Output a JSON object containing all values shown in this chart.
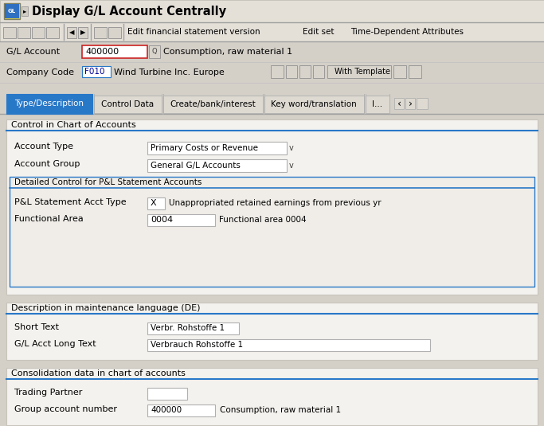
{
  "title": "Display G/L Account Centrally",
  "bg_color": "#d4d0c8",
  "white": "#ffffff",
  "light_gray": "#f0ede8",
  "tab_active_bg": "#2878c8",
  "tab_active_fg": "#ffffff",
  "tab_inactive_fg": "#000000",
  "blue_line": "#2878c8",
  "input_bg": "#ffffff",
  "input_red_border": "#cc2222",
  "input_blue_border": "#2878c8",
  "gray_border": "#b0b0b0",
  "menu_items": [
    "Edit financial statement version",
    "Edit set",
    "Time-Dependent Attributes"
  ],
  "gl_account_val": "400000",
  "gl_account_desc": "Consumption, raw material 1",
  "company_code_val": "F010",
  "company_code_desc": "Wind Turbine Inc. Europe",
  "tabs": [
    "Type/Description",
    "Control Data",
    "Create/bank/interest",
    "Key word/translation",
    "I..."
  ],
  "active_tab": 0,
  "section1_title": "Control in Chart of Accounts",
  "account_type_label": "Account Type",
  "account_type_val": "Primary Costs or Revenue",
  "account_group_label": "Account Group",
  "account_group_val": "General G/L Accounts",
  "detail_section_title": "Detailed Control for P&L Statement Accounts",
  "pl_label": "P&L Statement Acct Type",
  "pl_val": "X",
  "pl_desc": "Unappropriated retained earnings from previous yr",
  "func_area_label": "Functional Area",
  "func_area_val": "0004",
  "func_area_desc": "Functional area 0004",
  "section2_title": "Description in maintenance language (DE)",
  "short_text_label": "Short Text",
  "short_text_val": "Verbr. Rohstoffe 1",
  "long_text_label": "G/L Acct Long Text",
  "long_text_val": "Verbrauch Rohstoffe 1",
  "section3_title": "Consolidation data in chart of accounts",
  "trading_partner_label": "Trading Partner",
  "group_acct_label": "Group account number",
  "group_acct_val": "400000",
  "group_acct_desc": "Consumption, raw material 1"
}
